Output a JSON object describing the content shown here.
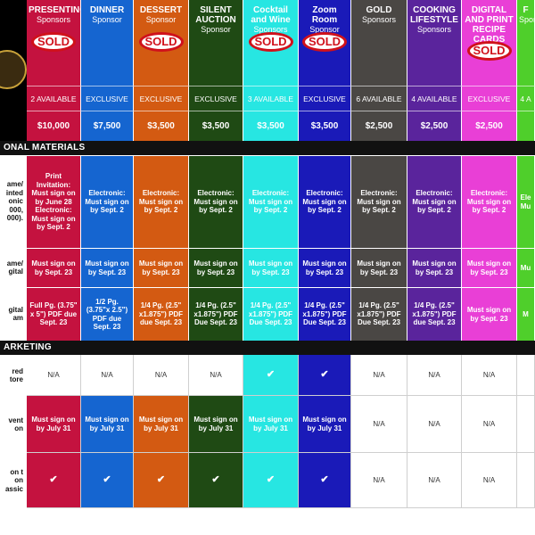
{
  "sponsors": [
    {
      "name": "PRESENTING",
      "sub": "Sponsors",
      "sold": true,
      "avail": "2 AVAILABLE",
      "price": "$10,000",
      "color": "#c4123f",
      "text": "#ffffff"
    },
    {
      "name": "DINNER",
      "sub": "Sponsor",
      "sold": false,
      "avail": "EXCLUSIVE",
      "price": "$7,500",
      "color": "#1565d0",
      "text": "#ffffff"
    },
    {
      "name": "DESSERT",
      "sub": "Sponsor",
      "sold": true,
      "avail": "EXCLUSIVE",
      "price": "$3,500",
      "color": "#d35a12",
      "text": "#ffffff"
    },
    {
      "name": "SILENT AUCTION",
      "sub": "Sponsor",
      "sold": false,
      "avail": "EXCLUSIVE",
      "price": "$3,500",
      "color": "#1f4a14",
      "text": "#ffffff"
    },
    {
      "name": "Cocktail and Wine",
      "sub": "Sponsors",
      "sold": true,
      "avail": "3 AVAILABLE",
      "price": "$3,500",
      "color": "#27e6e2",
      "text": "#ffffff"
    },
    {
      "name": "Zoom Room",
      "sub": "Sponsor",
      "sold": true,
      "avail": "EXCLUSIVE",
      "price": "$3,500",
      "color": "#1a1ab8",
      "text": "#ffffff"
    },
    {
      "name": "GOLD",
      "sub": "Sponsors",
      "sold": false,
      "avail": "6 AVAILABLE",
      "price": "$2,500",
      "color": "#4a4744",
      "text": "#ffffff"
    },
    {
      "name": "COOKING LIFESTYLE",
      "sub": "Sponsors",
      "sold": false,
      "avail": "4 AVAILABLE",
      "price": "$2,500",
      "color": "#5a249c",
      "text": "#ffffff"
    },
    {
      "name": "DIGITAL AND PRINT RECIPE CARDS",
      "sub": "",
      "sold": true,
      "avail": "EXCLUSIVE",
      "price": "$2,500",
      "color": "#e93fd6",
      "text": "#ffffff"
    },
    {
      "name": "F",
      "sub": "Sponso",
      "sold": false,
      "avail": "4 A",
      "price": "",
      "color": "#4fcf2b",
      "text": "#ffffff"
    }
  ],
  "sold_label": "SOLD",
  "sections": {
    "promo": "ONAL MATERIALS",
    "marketing": "ARKETING"
  },
  "row_labels": {
    "r1": "ame/ inted onic 000, 000).",
    "r2": "ame/ gital",
    "r3": "gital am",
    "r4": "red tore",
    "r5": "vent on",
    "r6": "on t on assic"
  },
  "promo_rows": {
    "r1": [
      "Print Invitation: Must sign on by June 28 Electronic: Must sign on by Sept. 2",
      "Electronic: Must sign on by Sept. 2",
      "Electronic: Must sign on by Sept. 2",
      "Electronic: Must sign on by Sept. 2",
      "Electronic: Must sign on by Sept. 2",
      "Electronic: Must sign on by Sept. 2",
      "Electronic: Must sign on by Sept. 2",
      "Electronic: Must sign on by Sept. 2",
      "Electronic: Must sign on by Sept. 2",
      "Ele Mu"
    ],
    "r2": [
      "Must sign on by Sept. 23",
      "Must sign on by Sept. 23",
      "Must sign on by Sept. 23",
      "Must sign on by Sept. 23",
      "Must sign on by Sept. 23",
      "Must sign on by Sept. 23",
      "Must sign on by Sept. 23",
      "Must sign on by Sept. 23",
      "Must sign on by Sept. 23",
      "Mu"
    ],
    "r3": [
      "Full Pg. (3.75\" x 5\") PDF due Sept. 23",
      "1/2 Pg. (3.75\"x 2.5\") PDF due Sept. 23",
      "1/4 Pg. (2.5\" x1.875\") PDF due Sept. 23",
      "1/4 Pg. (2.5\" x1.875\") PDF Due Sept. 23",
      "1/4 Pg. (2.5\" x1.875\") PDF Due Sept. 23",
      "1/4 Pg. (2.5\" x1.875\") PDF Due Sept. 23",
      "1/4 Pg. (2.5\" x1.875\") PDF Due Sept. 23",
      "1/4 Pg. (2.5\" x1.875\") PDF due Sept. 23",
      "Must sign on by Sept. 23",
      "M"
    ]
  },
  "marketing_rows": {
    "r4": [
      {
        "t": "N/A",
        "f": false
      },
      {
        "t": "N/A",
        "f": false
      },
      {
        "t": "N/A",
        "f": false
      },
      {
        "t": "N/A",
        "f": false
      },
      {
        "t": "✔",
        "f": true
      },
      {
        "t": "✔",
        "f": true
      },
      {
        "t": "N/A",
        "f": false
      },
      {
        "t": "N/A",
        "f": false
      },
      {
        "t": "N/A",
        "f": false
      },
      {
        "t": "",
        "f": false
      }
    ],
    "r5": [
      {
        "t": "Must sign on by July 31",
        "f": true
      },
      {
        "t": "Must sign on by July 31",
        "f": true
      },
      {
        "t": "Must sign on by July 31",
        "f": true
      },
      {
        "t": "Must sign on by July 31",
        "f": true
      },
      {
        "t": "Must sign on by July 31",
        "f": true
      },
      {
        "t": "Must sign on by July 31",
        "f": true
      },
      {
        "t": "N/A",
        "f": false
      },
      {
        "t": "N/A",
        "f": false
      },
      {
        "t": "N/A",
        "f": false
      },
      {
        "t": "",
        "f": false
      }
    ],
    "r6": [
      {
        "t": "✔",
        "f": true
      },
      {
        "t": "✔",
        "f": true
      },
      {
        "t": "✔",
        "f": true
      },
      {
        "t": "✔",
        "f": true
      },
      {
        "t": "✔",
        "f": true
      },
      {
        "t": "✔",
        "f": true
      },
      {
        "t": "N/A",
        "f": false
      },
      {
        "t": "N/A",
        "f": false
      },
      {
        "t": "N/A",
        "f": false
      },
      {
        "t": "",
        "f": false
      }
    ]
  }
}
